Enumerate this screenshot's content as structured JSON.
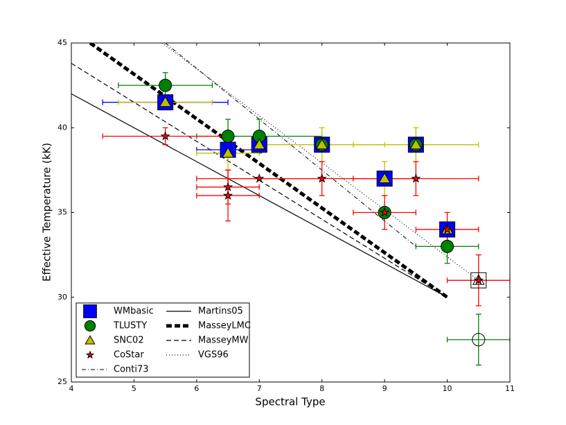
{
  "chart_data": {
    "type": "scatter",
    "xlabel": "Spectral Type",
    "ylabel": "Effective Temperature (kK)",
    "xlim": [
      4,
      11
    ],
    "ylim": [
      25,
      45
    ],
    "xticks": [
      4,
      5,
      6,
      7,
      8,
      9,
      10,
      11
    ],
    "yticks": [
      25,
      30,
      35,
      40,
      45
    ],
    "series": [
      {
        "name": "WMbasic",
        "marker": "square",
        "color": "#0000ff",
        "x": [
          5.5,
          6.5,
          7,
          8,
          9,
          9.5,
          10,
          10.5
        ],
        "values": [
          41.5,
          38.7,
          39,
          39,
          37,
          39,
          34,
          31
        ],
        "xerr": [
          1,
          0.5,
          null,
          null,
          null,
          null,
          null,
          null
        ],
        "yerr": [
          null,
          null,
          null,
          null,
          null,
          null,
          null,
          null
        ],
        "open": [
          false,
          false,
          false,
          false,
          false,
          false,
          false,
          true
        ]
      },
      {
        "name": "TLUSTY",
        "marker": "circle",
        "color": "#008000",
        "x": [
          5.5,
          6.5,
          7,
          8,
          9,
          9.5,
          10,
          10.5
        ],
        "values": [
          42.5,
          39.5,
          39.5,
          39,
          35,
          39,
          33,
          27.5
        ],
        "xerr": [
          0.75,
          null,
          1,
          null,
          null,
          null,
          0.5,
          0.5
        ],
        "yerr": [
          0.75,
          1,
          1,
          null,
          null,
          null,
          1,
          1.5
        ],
        "open": [
          false,
          false,
          false,
          false,
          false,
          false,
          false,
          true
        ]
      },
      {
        "name": "SNC02",
        "marker": "triangle",
        "color": "#bfbf00",
        "x": [
          5.5,
          6.5,
          7,
          8,
          9,
          9.5,
          10,
          10.5
        ],
        "values": [
          41.5,
          38.5,
          39,
          39,
          37,
          39,
          34,
          31
        ],
        "xerr": [
          0.75,
          0.5,
          null,
          1,
          0.5,
          1,
          null,
          null
        ],
        "yerr": [
          null,
          1,
          null,
          1,
          1,
          1,
          null,
          null
        ],
        "open": [
          false,
          false,
          false,
          false,
          false,
          false,
          false,
          true
        ]
      },
      {
        "name": "CoStar",
        "marker": "star",
        "color": "#ff0000",
        "x": [
          5.5,
          6.5,
          6.5,
          7,
          8,
          9,
          9.5,
          10,
          10.5
        ],
        "values": [
          39.5,
          36.5,
          36,
          37,
          37,
          35,
          37,
          34,
          31
        ],
        "xerr": [
          1,
          0.5,
          0.5,
          1,
          1.5,
          0.5,
          1,
          0.5,
          0.5
        ],
        "yerr": [
          0.5,
          1,
          1.5,
          null,
          1,
          1,
          1,
          1,
          1.5
        ],
        "open": [
          false,
          false,
          false,
          false,
          false,
          false,
          false,
          false,
          false
        ]
      }
    ],
    "lines": [
      {
        "name": "Conti73",
        "dash": "6,3,1,3",
        "width": 1,
        "x": [
          5.5,
          9.5
        ],
        "values": [
          45,
          33
        ]
      },
      {
        "name": "Martins05",
        "dash": "none",
        "width": 1.2,
        "x": [
          4,
          10
        ],
        "values": [
          42,
          30
        ]
      },
      {
        "name": "MasseyLMC",
        "dash": "8,4",
        "width": 5,
        "x": [
          4.3,
          10
        ],
        "values": [
          45,
          30
        ]
      },
      {
        "name": "MasseyMW",
        "dash": "7,4",
        "width": 1.2,
        "x": [
          4,
          10
        ],
        "values": [
          43.8,
          30
        ]
      },
      {
        "name": "VGS96",
        "dash": "1,3",
        "width": 1.2,
        "x": [
          5.45,
          10.5
        ],
        "values": [
          45,
          31
        ]
      }
    ]
  }
}
